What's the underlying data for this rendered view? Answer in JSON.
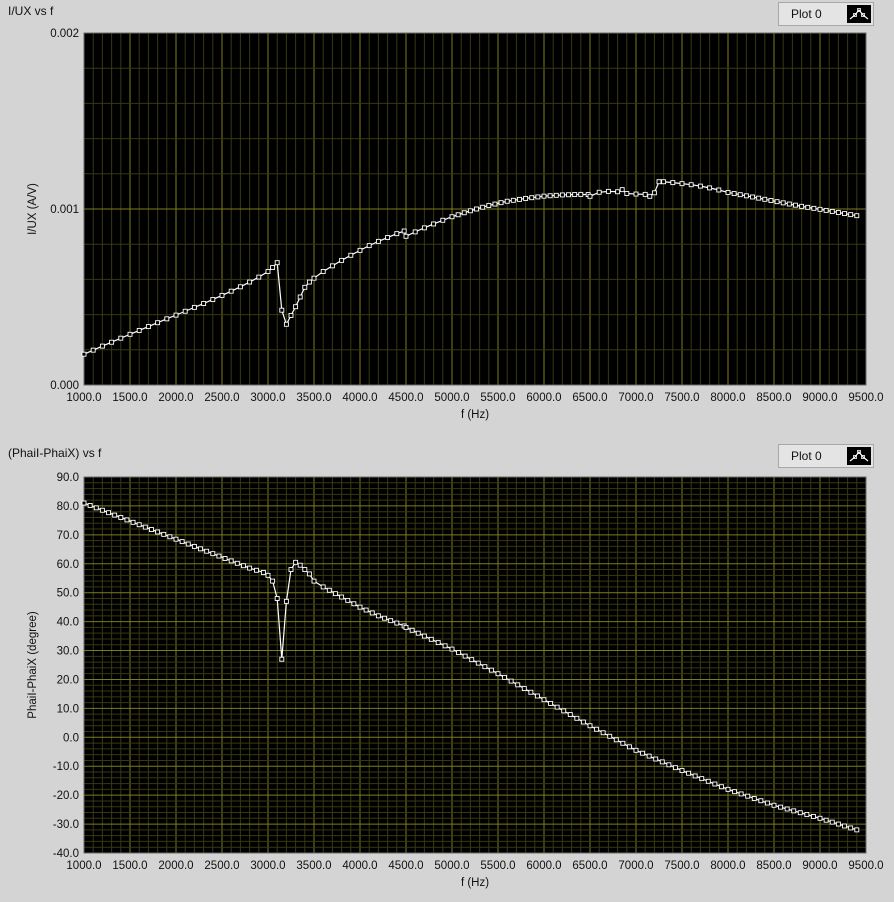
{
  "legend": {
    "label": "Plot 0",
    "icon": "line-plot-icon"
  },
  "colors": {
    "plot_bg": "#000000",
    "grid_major": "#7c7c1c",
    "grid_minor": "#383810",
    "trace": "#ffffff"
  },
  "chart_data": [
    {
      "type": "line",
      "title": "I/UX vs f",
      "xlabel": "f (Hz)",
      "ylabel": "I/UX (A/V)",
      "xlim": [
        1000,
        9500
      ],
      "ylim": [
        0,
        0.002
      ],
      "x_ticks": [
        "1000.0",
        "1500.0",
        "2000.0",
        "2500.0",
        "3000.0",
        "3500.0",
        "4000.0",
        "4500.0",
        "5000.0",
        "5500.0",
        "6000.0",
        "6500.0",
        "7000.0",
        "7500.0",
        "8000.0",
        "8500.0",
        "9000.0",
        "9500.0"
      ],
      "y_ticks": [
        "0.000",
        "0.001",
        "0.002"
      ],
      "grid": true,
      "x": [
        1000,
        1100,
        1200,
        1300,
        1400,
        1500,
        1600,
        1700,
        1800,
        1900,
        2000,
        2100,
        2200,
        2300,
        2400,
        2500,
        2600,
        2700,
        2800,
        2900,
        3000,
        3050,
        3100,
        3150,
        3200,
        3250,
        3300,
        3350,
        3400,
        3450,
        3500,
        3600,
        3700,
        3800,
        3900,
        4000,
        4100,
        4200,
        4300,
        4400,
        4480,
        4500,
        4600,
        4700,
        4800,
        4900,
        5000,
        5200,
        5400,
        5600,
        5800,
        6000,
        6200,
        6400,
        6480,
        6500,
        6600,
        6700,
        6800,
        6850,
        6900,
        7000,
        7100,
        7150,
        7200,
        7250,
        7300,
        7400,
        7500,
        7600,
        7700,
        7800,
        7900,
        8000,
        8200,
        8400,
        8600,
        8800,
        9000,
        9200,
        9400
      ],
      "values": [
        0.000175,
        0.000198,
        0.000221,
        0.000243,
        0.000266,
        0.000288,
        0.00031,
        0.000332,
        0.000354,
        0.000376,
        0.000397,
        0.000419,
        0.000441,
        0.000463,
        0.000486,
        0.000509,
        0.000533,
        0.000558,
        0.000585,
        0.000613,
        0.000645,
        0.000668,
        0.000695,
        0.000425,
        0.000345,
        0.000395,
        0.000445,
        0.0005,
        0.000555,
        0.000585,
        0.000607,
        0.000645,
        0.000677,
        0.000708,
        0.000737,
        0.000765,
        0.000792,
        0.000816,
        0.000838,
        0.00086,
        0.000875,
        0.000845,
        0.00087,
        0.000893,
        0.000915,
        0.000936,
        0.000956,
        0.00099,
        0.00102,
        0.001044,
        0.00106,
        0.001073,
        0.00108,
        0.001083,
        0.001082,
        0.001072,
        0.001095,
        0.0011,
        0.001098,
        0.00111,
        0.001088,
        0.001085,
        0.001083,
        0.001072,
        0.001092,
        0.001155,
        0.001155,
        0.00115,
        0.001144,
        0.001138,
        0.00113,
        0.00112,
        0.001108,
        0.001094,
        0.001075,
        0.001055,
        0.001035,
        0.001015,
        0.000998,
        0.00098,
        0.000962
      ]
    },
    {
      "type": "line",
      "title": "(PhaiI-PhaiX) vs f",
      "xlabel": "f (Hz)",
      "ylabel": "PhaiI-PhaiX (degree)",
      "xlim": [
        1000,
        9500
      ],
      "ylim": [
        -40,
        90
      ],
      "x_ticks": [
        "1000.0",
        "1500.0",
        "2000.0",
        "2500.0",
        "3000.0",
        "3500.0",
        "4000.0",
        "4500.0",
        "5000.0",
        "5500.0",
        "6000.0",
        "6500.0",
        "7000.0",
        "7500.0",
        "8000.0",
        "8500.0",
        "9000.0",
        "9500.0"
      ],
      "y_ticks": [
        "90.0",
        "80.0",
        "70.0",
        "60.0",
        "50.0",
        "40.0",
        "30.0",
        "20.0",
        "10.0",
        "0.0",
        "-10.0",
        "-20.0",
        "-30.0",
        "-40.0"
      ],
      "grid": true,
      "x": [
        1000,
        1200,
        1400,
        1600,
        1800,
        2000,
        2200,
        2400,
        2600,
        2800,
        2950,
        3000,
        3050,
        3100,
        3150,
        3200,
        3250,
        3300,
        3350,
        3400,
        3450,
        3500,
        3600,
        3800,
        4000,
        4200,
        4400,
        4480,
        4500,
        4700,
        5000,
        5500,
        6000,
        6500,
        7000,
        7500,
        8000,
        8500,
        9000,
        9400
      ],
      "values": [
        81,
        78.5,
        76,
        73.5,
        71,
        68.5,
        66,
        63.5,
        61,
        58.5,
        57,
        56,
        54,
        48,
        27,
        47,
        58,
        60.5,
        59.5,
        58,
        56.5,
        54,
        52,
        48.5,
        45,
        42,
        39.5,
        38.5,
        38,
        35,
        30.5,
        22,
        13,
        4,
        -4.5,
        -11.5,
        -18,
        -23.5,
        -28,
        -32
      ]
    }
  ]
}
